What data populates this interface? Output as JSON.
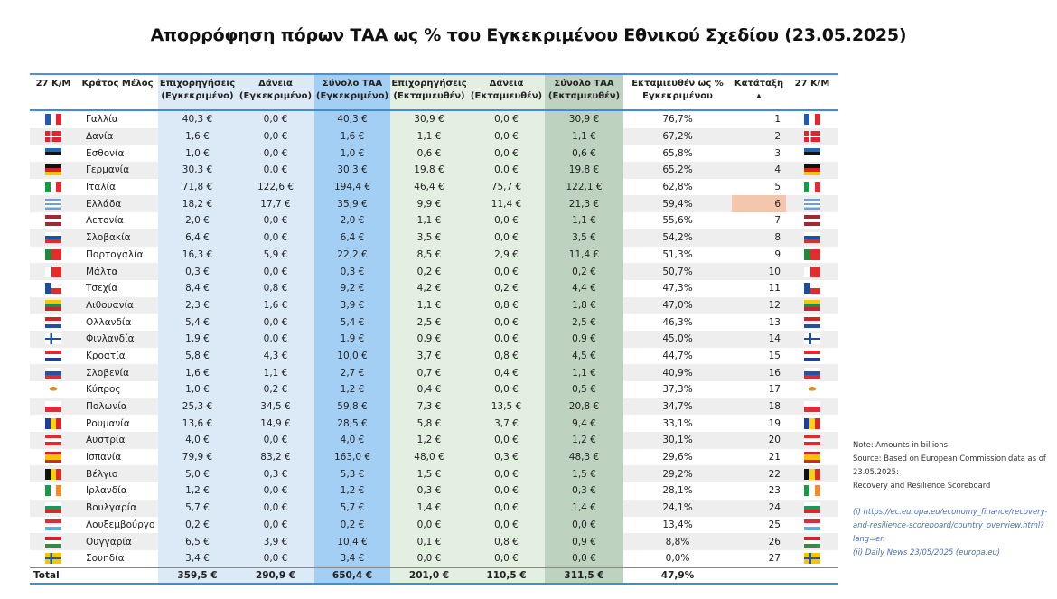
{
  "title": "Απορρόφηση πόρων ΤΑΑ ως % του Εγκεκριμένου Εθνικού Σχεδίου (23.05.2025)",
  "headers": [
    "27 Κ/Μ",
    "Κράτος Μέλος",
    "Επιχορηγήσεις (Εγκεκριμένο)",
    "Δάνεια (Εγκεκριμένο)",
    "Σύνολο ΤΑΑ (Εγκεκριμένο)",
    "Επιχορηγήσεις (Εκταμιευθέν)",
    "Δάνεια (Εκταμιευθέν)",
    "Σύνολο ΤΑΑ (Εκταμιευθέν)",
    "Εκταμιευθέν ως % Εγκεκριμένου",
    "Κατάταξη",
    "27 Κ/Μ"
  ],
  "sort_indicator": "▲",
  "highlight_color": "#f5c6ae",
  "rows": [
    {
      "name": "Γαλλία",
      "v": [
        "40,3 €",
        "0,0 €",
        "40,3 €",
        "30,9 €",
        "0,0 €",
        "30,9 €"
      ],
      "pct": "76,7%",
      "rank": "1",
      "flag": {
        "d": "v",
        "c": [
          "#1f5bb5",
          "#fff",
          "#e8232f"
        ]
      }
    },
    {
      "name": "Δανία",
      "v": [
        "1,6 €",
        "0,0 €",
        "1,6 €",
        "1,1 €",
        "0,0 €",
        "1,1 €"
      ],
      "pct": "67,2%",
      "rank": "2",
      "flag": {
        "d": "dk",
        "c": [
          "#e52330",
          "#fff"
        ]
      }
    },
    {
      "name": "Εσθονία",
      "v": [
        "1,0 €",
        "0,0 €",
        "1,0 €",
        "0,6 €",
        "0,0 €",
        "0,6 €"
      ],
      "pct": "65,8%",
      "rank": "3",
      "flag": {
        "d": "h",
        "c": [
          "#2466b3",
          "#111",
          "#fff"
        ]
      }
    },
    {
      "name": "Γερμανία",
      "v": [
        "30,3 €",
        "0,0 €",
        "30,3 €",
        "19,8 €",
        "0,0 €",
        "19,8 €"
      ],
      "pct": "65,2%",
      "rank": "4",
      "flag": {
        "d": "h",
        "c": [
          "#111",
          "#dd1f26",
          "#f5c400"
        ]
      }
    },
    {
      "name": "Ιταλία",
      "v": [
        "71,8 €",
        "122,6 €",
        "194,4 €",
        "46,4 €",
        "75,7 €",
        "122,1 €"
      ],
      "pct": "62,8%",
      "rank": "5",
      "flag": {
        "d": "v",
        "c": [
          "#1a9a48",
          "#fff",
          "#e22c33"
        ]
      }
    },
    {
      "name": "Ελλάδα",
      "v": [
        "18,2 €",
        "17,7 €",
        "35,9 €",
        "9,9 €",
        "11,4 €",
        "21,3 €"
      ],
      "pct": "59,4%",
      "rank": "6",
      "highlight": true,
      "flag": {
        "d": "h",
        "c": [
          "#6d9fd8",
          "#fff",
          "#6d9fd8",
          "#fff",
          "#6d9fd8"
        ]
      }
    },
    {
      "name": "Λετονία",
      "v": [
        "2,0 €",
        "0,0 €",
        "2,0 €",
        "1,1 €",
        "0,0 €",
        "1,1 €"
      ],
      "pct": "55,6%",
      "rank": "7",
      "flag": {
        "d": "h",
        "c": [
          "#9e2a35",
          "#fff",
          "#9e2a35"
        ]
      }
    },
    {
      "name": "Σλοβακία",
      "v": [
        "6,4 €",
        "0,0 €",
        "6,4 €",
        "3,5 €",
        "0,0 €",
        "3,5 €"
      ],
      "pct": "54,2%",
      "rank": "8",
      "flag": {
        "d": "h",
        "c": [
          "#fff",
          "#1d4fa3",
          "#e02b2b"
        ]
      }
    },
    {
      "name": "Πορτογαλία",
      "v": [
        "16,3 €",
        "5,9 €",
        "22,2 €",
        "8,5 €",
        "2,9 €",
        "11,4 €"
      ],
      "pct": "51,3%",
      "rank": "9",
      "flag": {
        "d": "v2",
        "c": [
          "#1e8a3a",
          "#e52b2b"
        ]
      }
    },
    {
      "name": "Μάλτα",
      "v": [
        "0,3 €",
        "0,0 €",
        "0,3 €",
        "0,2 €",
        "0,0 €",
        "0,2 €"
      ],
      "pct": "50,7%",
      "rank": "10",
      "flag": {
        "d": "v2",
        "c": [
          "#fff",
          "#e52b2b"
        ]
      }
    },
    {
      "name": "Τσεχία",
      "v": [
        "8,4 €",
        "0,8 €",
        "9,2 €",
        "4,2 €",
        "0,2 €",
        "4,4 €"
      ],
      "pct": "47,3%",
      "rank": "11",
      "flag": {
        "d": "cz",
        "c": [
          "#fff",
          "#e02b2b",
          "#1b4f9c"
        ]
      }
    },
    {
      "name": "Λιθουανία",
      "v": [
        "2,3 €",
        "1,6 €",
        "3,9 €",
        "1,1 €",
        "0,8 €",
        "1,8 €"
      ],
      "pct": "47,0%",
      "rank": "12",
      "flag": {
        "d": "h",
        "c": [
          "#f7c600",
          "#1f8c45",
          "#c4272f"
        ]
      }
    },
    {
      "name": "Ολλανδία",
      "v": [
        "5,4 €",
        "0,0 €",
        "5,4 €",
        "2,5 €",
        "0,0 €",
        "2,5 €"
      ],
      "pct": "46,3%",
      "rank": "13",
      "flag": {
        "d": "h",
        "c": [
          "#d2232f",
          "#fff",
          "#1f4ea3"
        ]
      }
    },
    {
      "name": "Φινλανδία",
      "v": [
        "1,9 €",
        "0,0 €",
        "1,9 €",
        "0,9 €",
        "0,0 €",
        "0,9 €"
      ],
      "pct": "45,0%",
      "rank": "14",
      "flag": {
        "d": "fi",
        "c": [
          "#fff",
          "#1b4f9c"
        ]
      }
    },
    {
      "name": "Κροατία",
      "v": [
        "5,8 €",
        "4,3 €",
        "10,0 €",
        "3,7 €",
        "0,8 €",
        "4,5 €"
      ],
      "pct": "44,7%",
      "rank": "15",
      "flag": {
        "d": "h",
        "c": [
          "#e02b2b",
          "#fff",
          "#1d3f8f"
        ]
      }
    },
    {
      "name": "Σλοβενία",
      "v": [
        "1,6 €",
        "1,1 €",
        "2,7 €",
        "0,7 €",
        "0,4 €",
        "1,1 €"
      ],
      "pct": "40,9%",
      "rank": "16",
      "flag": {
        "d": "h",
        "c": [
          "#fff",
          "#1d54a8",
          "#e02b2b"
        ]
      }
    },
    {
      "name": "Κύπρος",
      "v": [
        "1,0 €",
        "0,2 €",
        "1,2 €",
        "0,4 €",
        "0,0 €",
        "0,5 €"
      ],
      "pct": "37,3%",
      "rank": "17",
      "flag": {
        "d": "cy",
        "c": [
          "#fff",
          "#d6912c"
        ]
      }
    },
    {
      "name": "Πολωνία",
      "v": [
        "25,3 €",
        "34,5 €",
        "59,8 €",
        "7,3 €",
        "13,5 €",
        "20,8 €"
      ],
      "pct": "34,7%",
      "rank": "18",
      "flag": {
        "d": "h",
        "c": [
          "#fff",
          "#e02b3b"
        ]
      }
    },
    {
      "name": "Ρουμανία",
      "v": [
        "13,6 €",
        "14,9 €",
        "28,5 €",
        "5,8 €",
        "3,7 €",
        "9,4 €"
      ],
      "pct": "33,1%",
      "rank": "19",
      "flag": {
        "d": "v",
        "c": [
          "#1f3f9a",
          "#fcd116",
          "#d9262c"
        ]
      }
    },
    {
      "name": "Αυστρία",
      "v": [
        "4,0 €",
        "0,0 €",
        "4,0 €",
        "1,2 €",
        "0,0 €",
        "1,2 €"
      ],
      "pct": "30,1%",
      "rank": "20",
      "flag": {
        "d": "h",
        "c": [
          "#e02b2b",
          "#fff",
          "#e02b2b"
        ]
      }
    },
    {
      "name": "Ισπανία",
      "v": [
        "79,9 €",
        "83,2 €",
        "163,0 €",
        "48,0 €",
        "0,3 €",
        "48,3 €"
      ],
      "pct": "29,6%",
      "rank": "21",
      "flag": {
        "d": "es",
        "c": [
          "#d2232f",
          "#f8c300"
        ]
      }
    },
    {
      "name": "Βέλγιο",
      "v": [
        "5,0 €",
        "0,3 €",
        "5,3 €",
        "1,5 €",
        "0,0 €",
        "1,5 €"
      ],
      "pct": "29,2%",
      "rank": "22",
      "flag": {
        "d": "v",
        "c": [
          "#111",
          "#f7d117",
          "#e02b2b"
        ]
      }
    },
    {
      "name": "Ιρλανδία",
      "v": [
        "1,2 €",
        "0,0 €",
        "1,2 €",
        "0,3 €",
        "0,0 €",
        "0,3 €"
      ],
      "pct": "28,1%",
      "rank": "23",
      "flag": {
        "d": "v",
        "c": [
          "#1a9a48",
          "#fff",
          "#f58a2a"
        ]
      }
    },
    {
      "name": "Βουλγαρία",
      "v": [
        "5,7 €",
        "0,0 €",
        "5,7 €",
        "1,4 €",
        "0,0 €",
        "1,4 €"
      ],
      "pct": "24,1%",
      "rank": "24",
      "flag": {
        "d": "h",
        "c": [
          "#fff",
          "#1a9a5a",
          "#d42a2a"
        ]
      }
    },
    {
      "name": "Λουξεμβούργο",
      "v": [
        "0,2 €",
        "0,0 €",
        "0,2 €",
        "0,0 €",
        "0,0 €",
        "0,0 €"
      ],
      "pct": "13,4%",
      "rank": "25",
      "flag": {
        "d": "h",
        "c": [
          "#e02b3b",
          "#fff",
          "#5ab0e0"
        ]
      }
    },
    {
      "name": "Ουγγαρία",
      "v": [
        "6,5 €",
        "3,9 €",
        "10,4 €",
        "0,1 €",
        "0,8 €",
        "0,9 €"
      ],
      "pct": "8,8%",
      "rank": "26",
      "flag": {
        "d": "h",
        "c": [
          "#d2232f",
          "#fff",
          "#3a8a45"
        ]
      }
    },
    {
      "name": "Σουηδία",
      "v": [
        "3,4 €",
        "0,0 €",
        "3,4 €",
        "0,0 €",
        "0,0 €",
        "0,0 €"
      ],
      "pct": "0,0%",
      "rank": "27",
      "flag": {
        "d": "fi",
        "c": [
          "#f7c600",
          "#1f5aa6"
        ]
      }
    }
  ],
  "total": {
    "label": "Total",
    "v": [
      "359,5 €",
      "290,9 €",
      "650,4 €",
      "201,0 €",
      "110,5 €",
      "311,5 €"
    ],
    "pct": "47,9%"
  },
  "notes": {
    "line1": "Note: Amounts in billions",
    "line2": "Source: Based on European Commission data as of 23.05.2025:",
    "line3": "Recovery and Resilience Scoreboard",
    "link1": "(i) https://ec.europa.eu/economy_finance/recovery-and-resilience-scoreboard/country_overview.html?lang=en",
    "link2": "(ii) Daily News 23/05/2025 (europa.eu)"
  }
}
